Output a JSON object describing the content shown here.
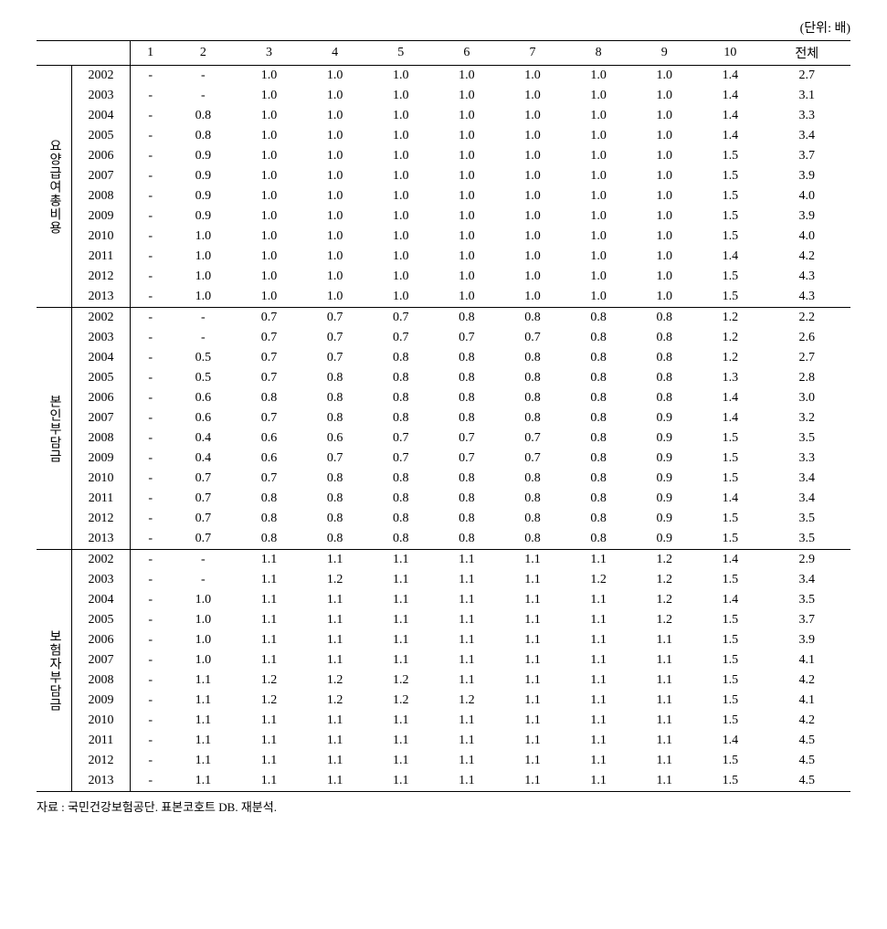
{
  "unit_label": "(단위: 배)",
  "columns": [
    "1",
    "2",
    "3",
    "4",
    "5",
    "6",
    "7",
    "8",
    "9",
    "10",
    "전체"
  ],
  "years": [
    "2002",
    "2003",
    "2004",
    "2005",
    "2006",
    "2007",
    "2008",
    "2009",
    "2010",
    "2011",
    "2012",
    "2013"
  ],
  "groups": [
    {
      "label": "요양급여총비용",
      "rows": [
        [
          "-",
          "-",
          "1.0",
          "1.0",
          "1.0",
          "1.0",
          "1.0",
          "1.0",
          "1.0",
          "1.4",
          "2.7"
        ],
        [
          "-",
          "-",
          "1.0",
          "1.0",
          "1.0",
          "1.0",
          "1.0",
          "1.0",
          "1.0",
          "1.4",
          "3.1"
        ],
        [
          "-",
          "0.8",
          "1.0",
          "1.0",
          "1.0",
          "1.0",
          "1.0",
          "1.0",
          "1.0",
          "1.4",
          "3.3"
        ],
        [
          "-",
          "0.8",
          "1.0",
          "1.0",
          "1.0",
          "1.0",
          "1.0",
          "1.0",
          "1.0",
          "1.4",
          "3.4"
        ],
        [
          "-",
          "0.9",
          "1.0",
          "1.0",
          "1.0",
          "1.0",
          "1.0",
          "1.0",
          "1.0",
          "1.5",
          "3.7"
        ],
        [
          "-",
          "0.9",
          "1.0",
          "1.0",
          "1.0",
          "1.0",
          "1.0",
          "1.0",
          "1.0",
          "1.5",
          "3.9"
        ],
        [
          "-",
          "0.9",
          "1.0",
          "1.0",
          "1.0",
          "1.0",
          "1.0",
          "1.0",
          "1.0",
          "1.5",
          "4.0"
        ],
        [
          "-",
          "0.9",
          "1.0",
          "1.0",
          "1.0",
          "1.0",
          "1.0",
          "1.0",
          "1.0",
          "1.5",
          "3.9"
        ],
        [
          "-",
          "1.0",
          "1.0",
          "1.0",
          "1.0",
          "1.0",
          "1.0",
          "1.0",
          "1.0",
          "1.5",
          "4.0"
        ],
        [
          "-",
          "1.0",
          "1.0",
          "1.0",
          "1.0",
          "1.0",
          "1.0",
          "1.0",
          "1.0",
          "1.4",
          "4.2"
        ],
        [
          "-",
          "1.0",
          "1.0",
          "1.0",
          "1.0",
          "1.0",
          "1.0",
          "1.0",
          "1.0",
          "1.5",
          "4.3"
        ],
        [
          "-",
          "1.0",
          "1.0",
          "1.0",
          "1.0",
          "1.0",
          "1.0",
          "1.0",
          "1.0",
          "1.5",
          "4.3"
        ]
      ]
    },
    {
      "label": "본인부담금",
      "rows": [
        [
          "-",
          "-",
          "0.7",
          "0.7",
          "0.7",
          "0.8",
          "0.8",
          "0.8",
          "0.8",
          "1.2",
          "2.2"
        ],
        [
          "-",
          "-",
          "0.7",
          "0.7",
          "0.7",
          "0.7",
          "0.7",
          "0.8",
          "0.8",
          "1.2",
          "2.6"
        ],
        [
          "-",
          "0.5",
          "0.7",
          "0.7",
          "0.8",
          "0.8",
          "0.8",
          "0.8",
          "0.8",
          "1.2",
          "2.7"
        ],
        [
          "-",
          "0.5",
          "0.7",
          "0.8",
          "0.8",
          "0.8",
          "0.8",
          "0.8",
          "0.8",
          "1.3",
          "2.8"
        ],
        [
          "-",
          "0.6",
          "0.8",
          "0.8",
          "0.8",
          "0.8",
          "0.8",
          "0.8",
          "0.8",
          "1.4",
          "3.0"
        ],
        [
          "-",
          "0.6",
          "0.7",
          "0.8",
          "0.8",
          "0.8",
          "0.8",
          "0.8",
          "0.9",
          "1.4",
          "3.2"
        ],
        [
          "-",
          "0.4",
          "0.6",
          "0.6",
          "0.7",
          "0.7",
          "0.7",
          "0.8",
          "0.9",
          "1.5",
          "3.5"
        ],
        [
          "-",
          "0.4",
          "0.6",
          "0.7",
          "0.7",
          "0.7",
          "0.7",
          "0.8",
          "0.9",
          "1.5",
          "3.3"
        ],
        [
          "-",
          "0.7",
          "0.7",
          "0.8",
          "0.8",
          "0.8",
          "0.8",
          "0.8",
          "0.9",
          "1.5",
          "3.4"
        ],
        [
          "-",
          "0.7",
          "0.8",
          "0.8",
          "0.8",
          "0.8",
          "0.8",
          "0.8",
          "0.9",
          "1.4",
          "3.4"
        ],
        [
          "-",
          "0.7",
          "0.8",
          "0.8",
          "0.8",
          "0.8",
          "0.8",
          "0.8",
          "0.9",
          "1.5",
          "3.5"
        ],
        [
          "-",
          "0.7",
          "0.8",
          "0.8",
          "0.8",
          "0.8",
          "0.8",
          "0.8",
          "0.9",
          "1.5",
          "3.5"
        ]
      ]
    },
    {
      "label": "보험자부담금",
      "rows": [
        [
          "-",
          "-",
          "1.1",
          "1.1",
          "1.1",
          "1.1",
          "1.1",
          "1.1",
          "1.2",
          "1.4",
          "2.9"
        ],
        [
          "-",
          "-",
          "1.1",
          "1.2",
          "1.1",
          "1.1",
          "1.1",
          "1.2",
          "1.2",
          "1.5",
          "3.4"
        ],
        [
          "-",
          "1.0",
          "1.1",
          "1.1",
          "1.1",
          "1.1",
          "1.1",
          "1.1",
          "1.2",
          "1.4",
          "3.5"
        ],
        [
          "-",
          "1.0",
          "1.1",
          "1.1",
          "1.1",
          "1.1",
          "1.1",
          "1.1",
          "1.2",
          "1.5",
          "3.7"
        ],
        [
          "-",
          "1.0",
          "1.1",
          "1.1",
          "1.1",
          "1.1",
          "1.1",
          "1.1",
          "1.1",
          "1.5",
          "3.9"
        ],
        [
          "-",
          "1.0",
          "1.1",
          "1.1",
          "1.1",
          "1.1",
          "1.1",
          "1.1",
          "1.1",
          "1.5",
          "4.1"
        ],
        [
          "-",
          "1.1",
          "1.2",
          "1.2",
          "1.2",
          "1.1",
          "1.1",
          "1.1",
          "1.1",
          "1.5",
          "4.2"
        ],
        [
          "-",
          "1.1",
          "1.2",
          "1.2",
          "1.2",
          "1.2",
          "1.1",
          "1.1",
          "1.1",
          "1.5",
          "4.1"
        ],
        [
          "-",
          "1.1",
          "1.1",
          "1.1",
          "1.1",
          "1.1",
          "1.1",
          "1.1",
          "1.1",
          "1.5",
          "4.2"
        ],
        [
          "-",
          "1.1",
          "1.1",
          "1.1",
          "1.1",
          "1.1",
          "1.1",
          "1.1",
          "1.1",
          "1.4",
          "4.5"
        ],
        [
          "-",
          "1.1",
          "1.1",
          "1.1",
          "1.1",
          "1.1",
          "1.1",
          "1.1",
          "1.1",
          "1.5",
          "4.5"
        ],
        [
          "-",
          "1.1",
          "1.1",
          "1.1",
          "1.1",
          "1.1",
          "1.1",
          "1.1",
          "1.1",
          "1.5",
          "4.5"
        ]
      ]
    }
  ],
  "source": "자료 : 국민건강보험공단. 표본코호트 DB. 재분석.",
  "table_style": {
    "background_color": "#ffffff",
    "text_color": "#000000",
    "border_color": "#000000",
    "font_family": "serif",
    "font_size": 14
  }
}
